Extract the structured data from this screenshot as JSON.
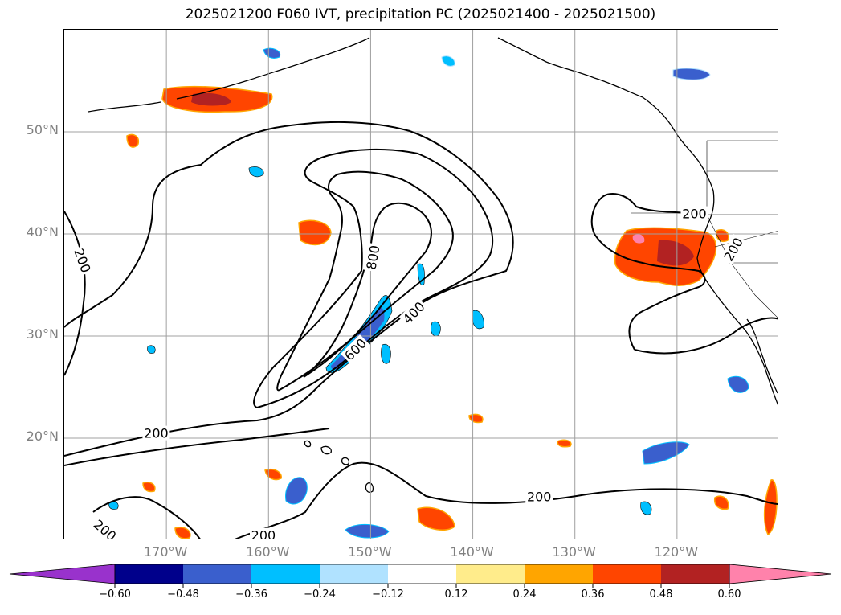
{
  "title": "2025021200 F060 IVT, precipitation PC (2025021400 - 2025021500)",
  "map": {
    "extent": {
      "lon_min": -180,
      "lon_max": -110,
      "lat_min": 10,
      "lat_max": 60
    },
    "gridlines": true,
    "lat_ticks": [
      {
        "value": 20,
        "label": "20°N"
      },
      {
        "value": 30,
        "label": "30°N"
      },
      {
        "value": 40,
        "label": "40°N"
      },
      {
        "value": 50,
        "label": "50°N"
      }
    ],
    "lon_ticks": [
      {
        "value": -170,
        "label": "170°W"
      },
      {
        "value": -160,
        "label": "160°W"
      },
      {
        "value": -150,
        "label": "150°W"
      },
      {
        "value": -140,
        "label": "140°W"
      },
      {
        "value": -130,
        "label": "130°W"
      },
      {
        "value": -120,
        "label": "120°W"
      }
    ],
    "ivt_contour_labels": [
      {
        "text": "200",
        "lon": -178.2,
        "lat": 37.4,
        "rotate": 70
      },
      {
        "text": "200",
        "lon": -171.0,
        "lat": 20.5,
        "rotate": 0
      },
      {
        "text": "200",
        "lon": -176.0,
        "lat": 11.0,
        "rotate": 40
      },
      {
        "text": "200",
        "lon": -160.5,
        "lat": 10.5,
        "rotate": 0
      },
      {
        "text": "200",
        "lon": -133.5,
        "lat": 14.3,
        "rotate": 0
      },
      {
        "text": "200",
        "lon": -118.3,
        "lat": 42.0,
        "rotate": 0
      },
      {
        "text": "200",
        "lon": -114.5,
        "lat": 38.5,
        "rotate": -60
      },
      {
        "text": "400",
        "lon": -145.8,
        "lat": 32.3,
        "rotate": -45
      },
      {
        "text": "600",
        "lon": -151.5,
        "lat": 28.7,
        "rotate": -45
      },
      {
        "text": "800",
        "lon": -149.8,
        "lat": 37.7,
        "rotate": -80
      }
    ]
  },
  "colorbar": {
    "bins": [
      {
        "color": "#9932cc"
      },
      {
        "color": "#00008b"
      },
      {
        "color": "#3a5fcd"
      },
      {
        "color": "#00bfff"
      },
      {
        "color": "#b0e2ff"
      },
      {
        "color": "#ffffff"
      },
      {
        "color": "#ffec8b"
      },
      {
        "color": "#ffa500"
      },
      {
        "color": "#ff4500"
      },
      {
        "color": "#b22222"
      },
      {
        "color": "#ff82ab"
      }
    ],
    "ticks": [
      "−0.60",
      "−0.48",
      "−0.36",
      "−0.24",
      "−0.12",
      "0.12",
      "0.24",
      "0.36",
      "0.48",
      "0.60"
    ]
  }
}
